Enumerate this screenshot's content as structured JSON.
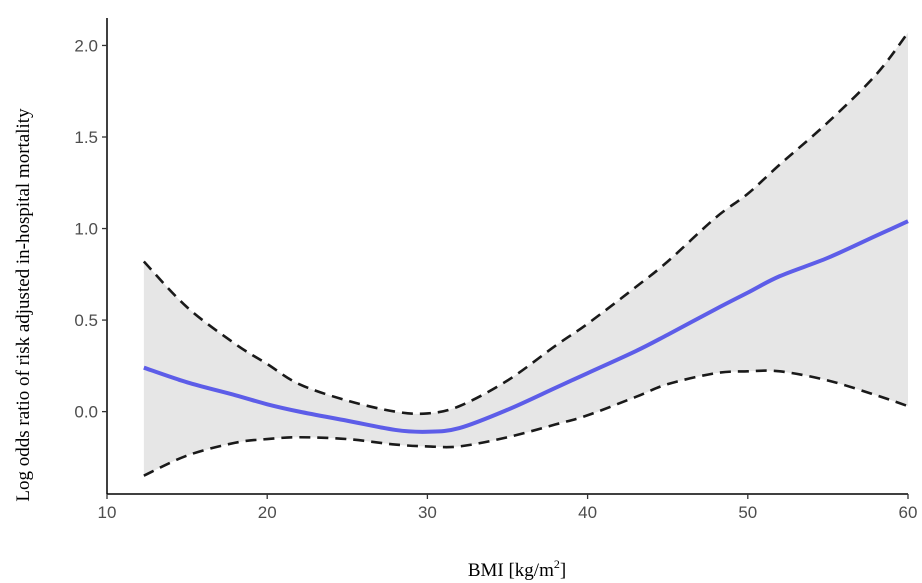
{
  "chart_data": {
    "type": "line",
    "title": "",
    "xlabel": "BMI [kg/m",
    "xlabel_superscript": "2",
    "xlabel_suffix": "]",
    "ylabel": "Log odds ratio of risk adjusted in-hospital mortality",
    "xlim": [
      10,
      60
    ],
    "ylim": [
      -0.45,
      2.15
    ],
    "x_ticks": [
      10,
      20,
      30,
      40,
      50,
      60
    ],
    "x_tick_labels": [
      "10",
      "20",
      "30",
      "40",
      "50",
      "60"
    ],
    "y_ticks": [
      0.0,
      0.5,
      1.0,
      1.5,
      2.0
    ],
    "y_tick_labels": [
      "0.0",
      "0.5",
      "1.0",
      "1.5",
      "2.0"
    ],
    "grid": false,
    "x": [
      12.3,
      15,
      18,
      20,
      22,
      25,
      28,
      30,
      32,
      35,
      38,
      40,
      43,
      45,
      48,
      50,
      52,
      55,
      58,
      60
    ],
    "series": [
      {
        "role": "estimate",
        "line_style": "solid",
        "color": "#5d5de8",
        "values": [
          0.24,
          0.16,
          0.09,
          0.04,
          0.0,
          -0.05,
          -0.1,
          -0.11,
          -0.09,
          0.01,
          0.13,
          0.21,
          0.33,
          0.42,
          0.56,
          0.65,
          0.74,
          0.84,
          0.96,
          1.04
        ]
      },
      {
        "role": "upper-ci",
        "line_style": "dashed",
        "color": "#1a1a1a",
        "values": [
          0.82,
          0.57,
          0.37,
          0.26,
          0.15,
          0.06,
          0.0,
          -0.01,
          0.03,
          0.17,
          0.36,
          0.48,
          0.68,
          0.82,
          1.06,
          1.19,
          1.35,
          1.58,
          1.84,
          2.07
        ]
      },
      {
        "role": "lower-ci",
        "line_style": "dashed",
        "color": "#1a1a1a",
        "values": [
          -0.35,
          -0.24,
          -0.17,
          -0.15,
          -0.14,
          -0.15,
          -0.18,
          -0.19,
          -0.19,
          -0.14,
          -0.07,
          -0.02,
          0.08,
          0.15,
          0.21,
          0.22,
          0.22,
          0.17,
          0.09,
          0.03
        ]
      }
    ],
    "band_fill": "#e6e6e6"
  }
}
